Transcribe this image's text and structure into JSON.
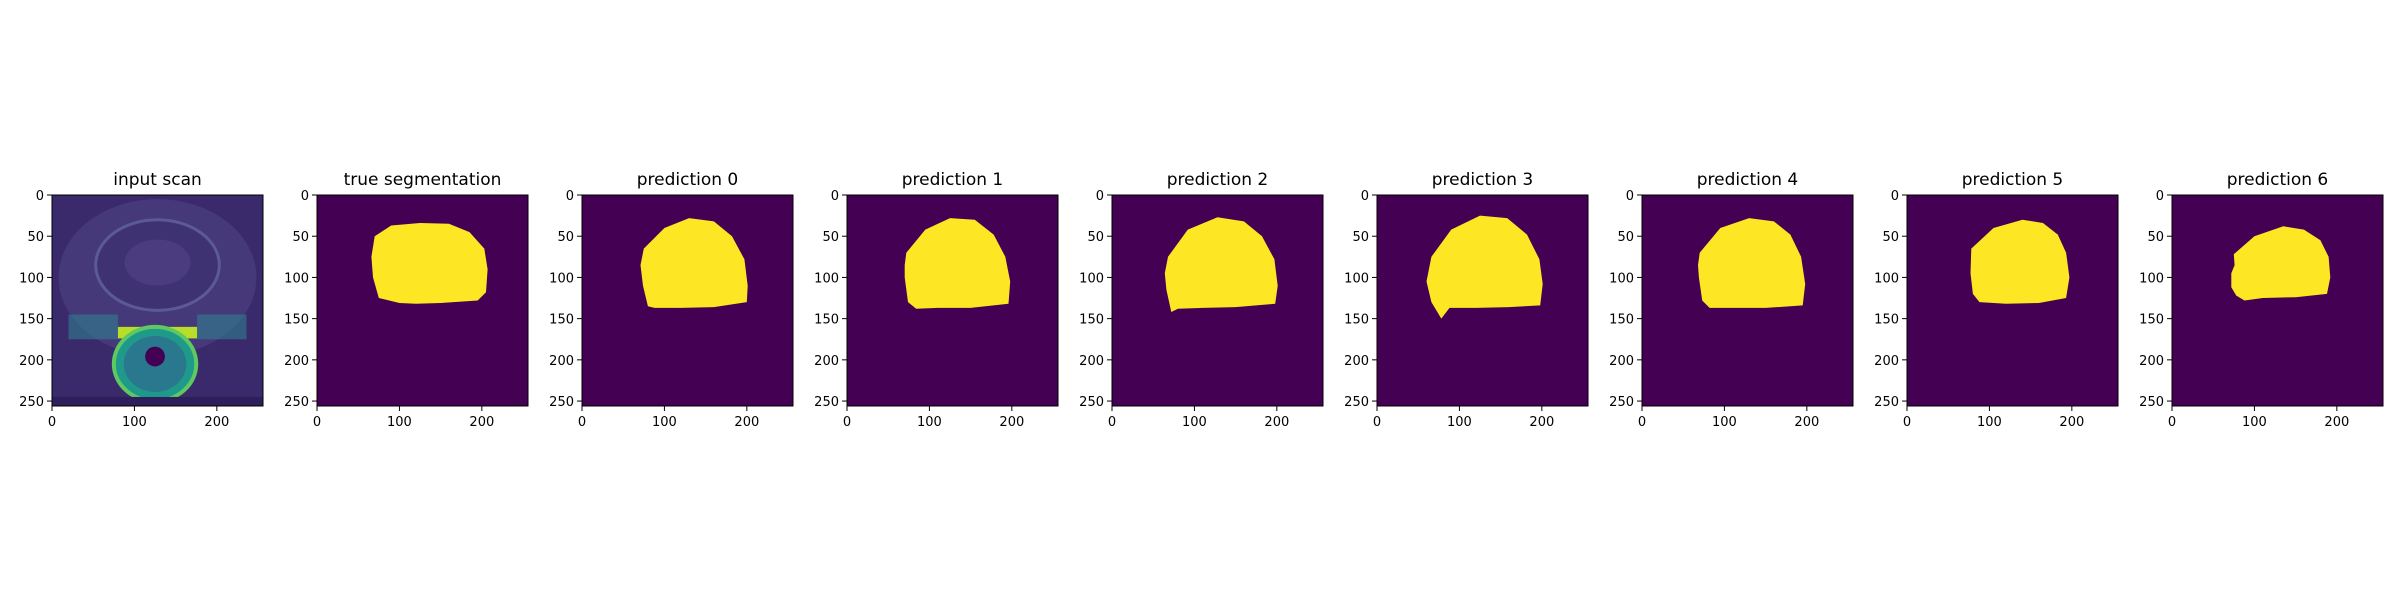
{
  "panels": [
    {
      "title": "input scan",
      "kind": "scan",
      "mask": "gt"
    },
    {
      "title": "true segmentation",
      "kind": "mask",
      "mask": "gt"
    },
    {
      "title": "prediction 0",
      "kind": "mask",
      "mask": "p0"
    },
    {
      "title": "prediction 1",
      "kind": "mask",
      "mask": "p1"
    },
    {
      "title": "prediction 2",
      "kind": "mask",
      "mask": "p2"
    },
    {
      "title": "prediction 3",
      "kind": "mask",
      "mask": "p3"
    },
    {
      "title": "prediction 4",
      "kind": "mask",
      "mask": "p4"
    },
    {
      "title": "prediction 5",
      "kind": "mask",
      "mask": "p5"
    },
    {
      "title": "prediction 6",
      "kind": "mask",
      "mask": "p6"
    }
  ],
  "axes": {
    "x_ticks": [
      "0",
      "100",
      "200"
    ],
    "y_ticks": [
      "0",
      "50",
      "100",
      "150",
      "200",
      "250"
    ],
    "x_tick_values": [
      0,
      100,
      200
    ],
    "y_tick_values": [
      0,
      50,
      100,
      150,
      200,
      250
    ],
    "range": [
      0,
      256
    ]
  },
  "colors": {
    "background": "#440154",
    "mask": "#fde725",
    "scan_dark": "#3b2a6b",
    "scan_mid": "#2f7f8e",
    "scan_bright": "#54c568",
    "scan_highlight": "#b8de29"
  },
  "masks": {
    "gt": [
      [
        70,
        50
      ],
      [
        90,
        37
      ],
      [
        125,
        34
      ],
      [
        160,
        35
      ],
      [
        185,
        45
      ],
      [
        203,
        65
      ],
      [
        207,
        90
      ],
      [
        205,
        118
      ],
      [
        195,
        128
      ],
      [
        150,
        131
      ],
      [
        120,
        132
      ],
      [
        100,
        131
      ],
      [
        75,
        125
      ],
      [
        68,
        100
      ],
      [
        66,
        75
      ]
    ],
    "p0": [
      [
        75,
        65
      ],
      [
        100,
        40
      ],
      [
        130,
        28
      ],
      [
        160,
        32
      ],
      [
        182,
        50
      ],
      [
        197,
        78
      ],
      [
        201,
        110
      ],
      [
        200,
        130
      ],
      [
        160,
        136
      ],
      [
        120,
        137
      ],
      [
        88,
        137
      ],
      [
        80,
        135
      ],
      [
        74,
        110
      ],
      [
        71,
        85
      ]
    ],
    "p1": [
      [
        72,
        70
      ],
      [
        95,
        42
      ],
      [
        125,
        28
      ],
      [
        155,
        30
      ],
      [
        178,
        48
      ],
      [
        192,
        75
      ],
      [
        198,
        105
      ],
      [
        196,
        132
      ],
      [
        150,
        137
      ],
      [
        110,
        137
      ],
      [
        84,
        138
      ],
      [
        74,
        130
      ],
      [
        70,
        100
      ],
      [
        70,
        85
      ]
    ],
    "p2": [
      [
        68,
        75
      ],
      [
        92,
        42
      ],
      [
        128,
        27
      ],
      [
        160,
        32
      ],
      [
        182,
        50
      ],
      [
        197,
        78
      ],
      [
        201,
        110
      ],
      [
        198,
        132
      ],
      [
        150,
        136
      ],
      [
        110,
        137
      ],
      [
        80,
        138
      ],
      [
        72,
        142
      ],
      [
        66,
        115
      ],
      [
        64,
        95
      ]
    ],
    "p3": [
      [
        66,
        75
      ],
      [
        90,
        42
      ],
      [
        125,
        25
      ],
      [
        158,
        28
      ],
      [
        182,
        48
      ],
      [
        197,
        78
      ],
      [
        201,
        108
      ],
      [
        198,
        134
      ],
      [
        160,
        136
      ],
      [
        120,
        137
      ],
      [
        88,
        137
      ],
      [
        78,
        150
      ],
      [
        66,
        130
      ],
      [
        60,
        105
      ]
    ],
    "p4": [
      [
        70,
        70
      ],
      [
        95,
        40
      ],
      [
        130,
        28
      ],
      [
        160,
        32
      ],
      [
        180,
        48
      ],
      [
        193,
        75
      ],
      [
        198,
        108
      ],
      [
        195,
        134
      ],
      [
        150,
        137
      ],
      [
        110,
        137
      ],
      [
        82,
        137
      ],
      [
        73,
        128
      ],
      [
        69,
        100
      ],
      [
        68,
        85
      ]
    ],
    "p5": [
      [
        78,
        65
      ],
      [
        105,
        40
      ],
      [
        140,
        30
      ],
      [
        165,
        34
      ],
      [
        183,
        48
      ],
      [
        193,
        70
      ],
      [
        197,
        100
      ],
      [
        193,
        125
      ],
      [
        160,
        131
      ],
      [
        120,
        132
      ],
      [
        88,
        130
      ],
      [
        80,
        120
      ],
      [
        77,
        95
      ]
    ],
    "p6": [
      [
        75,
        72
      ],
      [
        100,
        50
      ],
      [
        135,
        38
      ],
      [
        160,
        42
      ],
      [
        180,
        55
      ],
      [
        190,
        75
      ],
      [
        192,
        100
      ],
      [
        188,
        120
      ],
      [
        150,
        124
      ],
      [
        110,
        125
      ],
      [
        88,
        128
      ],
      [
        78,
        122
      ],
      [
        72,
        112
      ],
      [
        72,
        95
      ],
      [
        76,
        85
      ]
    ]
  }
}
